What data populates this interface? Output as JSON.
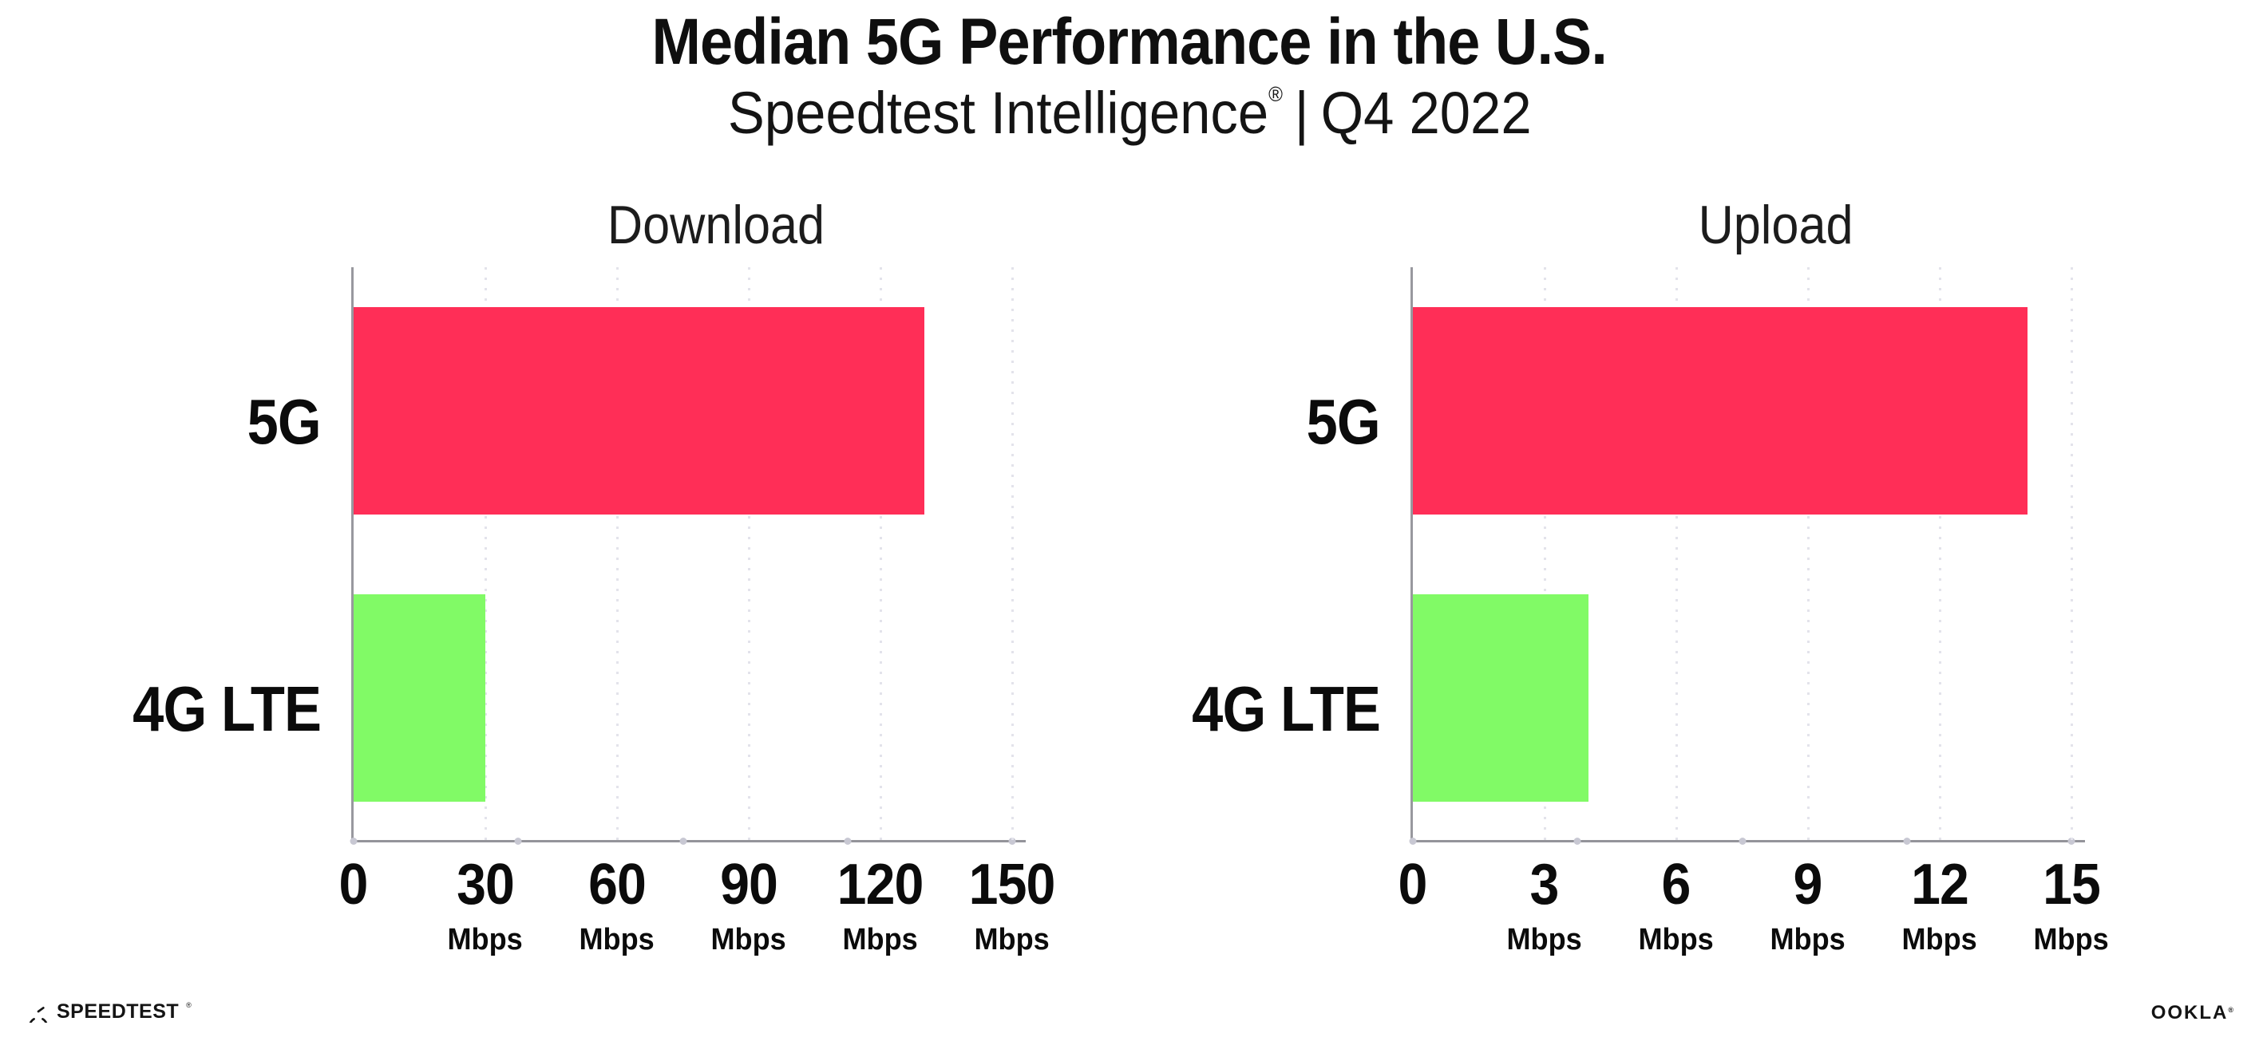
{
  "page": {
    "background": "#ffffff"
  },
  "header": {
    "title": "Median 5G Performance in the U.S.",
    "subtitle_brand": "Speedtest Intelligence",
    "subtitle_registered": "®",
    "subtitle_separator": "|",
    "subtitle_period": "Q4 2022"
  },
  "colors": {
    "bar_5g": "#ff2e57",
    "bar_4g_lte": "#81fa66",
    "axis": "#96969c",
    "gridline": "#e3e3eb",
    "baseline_dot": "#c8c8d3",
    "text": "#0f0f0f"
  },
  "chart_data": [
    {
      "type": "bar",
      "orientation": "horizontal",
      "title": "Download",
      "categories": [
        "5G",
        "4G LTE"
      ],
      "values": [
        130,
        30
      ],
      "unit": "Mbps",
      "xlim": [
        0,
        150
      ],
      "xticks": [
        0,
        30,
        60,
        90,
        120,
        150
      ],
      "bar_colors": [
        "#ff2e57",
        "#81fa66"
      ],
      "grid": "dotted vertical gridlines at each tick",
      "legend": "none"
    },
    {
      "type": "bar",
      "orientation": "horizontal",
      "title": "Upload",
      "categories": [
        "5G",
        "4G LTE"
      ],
      "values": [
        14,
        4
      ],
      "unit": "Mbps",
      "xlim": [
        0,
        15
      ],
      "xticks": [
        0,
        3,
        6,
        9,
        12,
        15
      ],
      "bar_colors": [
        "#ff2e57",
        "#81fa66"
      ],
      "grid": "dotted vertical gridlines at each tick",
      "legend": "none"
    }
  ],
  "footer": {
    "speedtest_wordmark": "SPEEDTEST",
    "speedtest_registered": "®",
    "ookla_wordmark": "OOKLA",
    "ookla_registered": "®"
  }
}
